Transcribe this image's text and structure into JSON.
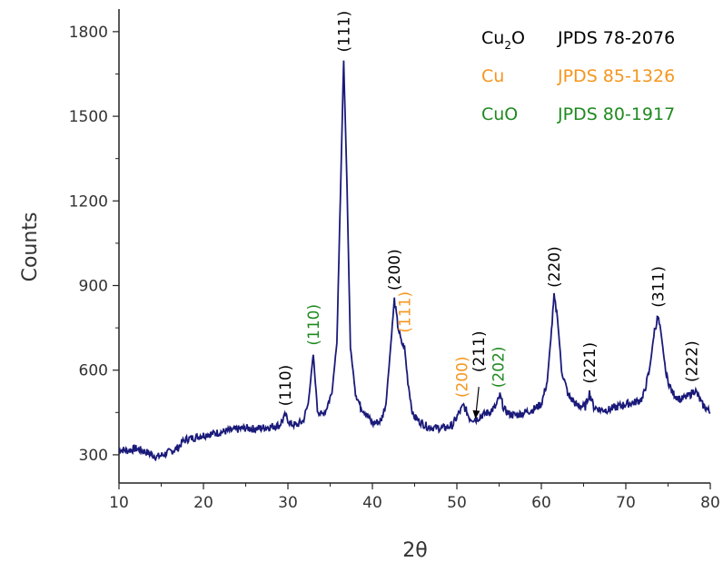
{
  "chart_data": {
    "type": "line",
    "xlabel": "2θ",
    "ylabel": "Counts",
    "xlim": [
      10,
      80
    ],
    "ylim": [
      200,
      1880
    ],
    "x_ticks": [
      10,
      20,
      30,
      40,
      50,
      60,
      70,
      80
    ],
    "y_ticks": [
      300,
      600,
      900,
      1200,
      1500,
      1800
    ],
    "grid": false,
    "colors": {
      "line": "#1a1a7a",
      "Cu2O": "#000000",
      "Cu": "#f5961e",
      "CuO": "#1f8a1f"
    },
    "series": [
      {
        "values_x": [
          10,
          11,
          12,
          13,
          14,
          14.5,
          15,
          16,
          17,
          17.5,
          18,
          19,
          20,
          21,
          22,
          23,
          24,
          25,
          26,
          27,
          28,
          29,
          29.7,
          30.3,
          31,
          31.8,
          32.4,
          33.0,
          33.5,
          34.0,
          34.5,
          35.2,
          35.8,
          36.2,
          36.6,
          37.0,
          37.4,
          38.0,
          38.6,
          39.2,
          40,
          41,
          41.6,
          42.2,
          42.6,
          43.0,
          43.4,
          43.8,
          44.2,
          44.8,
          45.5,
          46.5,
          47.5,
          48.5,
          49.5,
          50.2,
          50.8,
          51.5,
          52.2,
          53,
          54,
          54.6,
          55.1,
          55.6,
          56.2,
          57,
          58,
          59,
          60,
          60.7,
          61.2,
          61.5,
          61.9,
          62.4,
          63.2,
          64.2,
          65.2,
          65.7,
          66.2,
          67,
          68,
          69,
          70,
          71,
          72,
          72.8,
          73.4,
          73.8,
          74.2,
          74.8,
          75.5,
          76.5,
          77.5,
          78.2,
          79,
          80
        ],
        "values_y": [
          320,
          315,
          322,
          312,
          300,
          292,
          298,
          310,
          325,
          345,
          355,
          362,
          370,
          375,
          380,
          385,
          390,
          395,
          392,
          396,
          400,
          405,
          440,
          410,
          405,
          420,
          480,
          655,
          460,
          440,
          460,
          520,
          700,
          1200,
          1695,
          1250,
          680,
          520,
          470,
          450,
          410,
          420,
          480,
          700,
          850,
          760,
          700,
          680,
          560,
          440,
          420,
          400,
          395,
          395,
          405,
          445,
          475,
          430,
          425,
          440,
          455,
          470,
          510,
          460,
          445,
          440,
          450,
          460,
          480,
          560,
          740,
          860,
          790,
          600,
          510,
          475,
          470,
          520,
          470,
          460,
          460,
          470,
          480,
          485,
          500,
          600,
          740,
          790,
          720,
          580,
          520,
          495,
          510,
          530,
          480,
          450
        ]
      }
    ],
    "peak_labels": [
      {
        "text": "(110)",
        "x": 29.7,
        "y": 440,
        "phase": "Cu2O"
      },
      {
        "text": "(110)",
        "x": 33.0,
        "y": 655,
        "phase": "CuO"
      },
      {
        "text": "(111)",
        "x": 36.6,
        "y": 1695,
        "phase": "Cu2O"
      },
      {
        "text": "(200)",
        "x": 42.6,
        "y": 850,
        "phase": "Cu2O"
      },
      {
        "text": "(111)",
        "x": 43.8,
        "y": 700,
        "phase": "Cu"
      },
      {
        "text": "(200)",
        "x": 50.6,
        "y": 470,
        "phase": "Cu"
      },
      {
        "text": "(211)",
        "x": 52.6,
        "y": 560,
        "phase": "Cu2O"
      },
      {
        "text": "(202)",
        "x": 54.9,
        "y": 505,
        "phase": "CuO"
      },
      {
        "text": "(220)",
        "x": 61.5,
        "y": 860,
        "phase": "Cu2O"
      },
      {
        "text": "(221)",
        "x": 65.7,
        "y": 520,
        "phase": "Cu2O"
      },
      {
        "text": "(311)",
        "x": 73.8,
        "y": 790,
        "phase": "Cu2O"
      },
      {
        "text": "(222)",
        "x": 77.8,
        "y": 525,
        "phase": "Cu2O"
      }
    ],
    "arrow": {
      "from": [
        52.6,
        560
      ],
      "to": [
        52.2,
        428
      ]
    },
    "legend": {
      "placement": "top-right",
      "entries": [
        {
          "phase": "Cu2O",
          "label_main": "Cu",
          "label_sub": "2",
          "label_tail": "O",
          "ref": "JPDS 78-2076"
        },
        {
          "phase": "Cu",
          "label_main": "Cu",
          "label_sub": "",
          "label_tail": "",
          "ref": "JPDS 85-1326"
        },
        {
          "phase": "CuO",
          "label_main": "CuO",
          "label_sub": "",
          "label_tail": "",
          "ref": "JPDS 80-1917"
        }
      ]
    }
  }
}
